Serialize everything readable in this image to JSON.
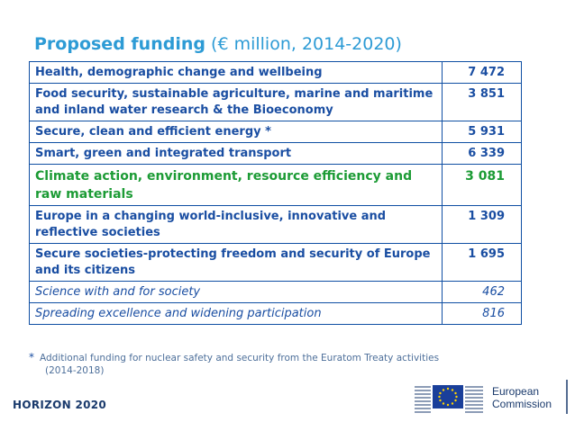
{
  "title": {
    "main": "Proposed funding",
    "sub": "(€ million, 2014-2020)"
  },
  "rows": [
    {
      "label": "Health, demographic change and wellbeing",
      "value": "7 472"
    },
    {
      "label": "Food security, sustainable agriculture, marine and maritime and inland water research & the Bioeconomy",
      "value": "3 851"
    },
    {
      "label": "Secure, clean and efficient energy *",
      "value": "5 931"
    },
    {
      "label": "Smart, green and integrated transport",
      "value": "6 339"
    },
    {
      "label": "Climate action, environment, resource efficiency and raw materials",
      "value": "3 081"
    },
    {
      "label": "Europe in a changing world-inclusive, innovative and reflective societies",
      "value": "1 309"
    },
    {
      "label": "Secure societies-protecting freedom and security of Europe and its citizens",
      "value": "1 695"
    },
    {
      "label": "Science with and for society",
      "value": "462"
    },
    {
      "label": "Spreading excellence and widening participation",
      "value": "816"
    }
  ],
  "footnote": {
    "star": "*",
    "line1": "Additional funding for nuclear safety and security from the Euratom Treaty activities",
    "line2": "(2014-2018)"
  },
  "brand": "HORIZON 2020",
  "commission": {
    "line1": "European",
    "line2": "Commission"
  },
  "colors": {
    "accent": "#2d9bd5",
    "table_text": "#1a4ea2",
    "highlight": "#1c9b35",
    "border": "#0f4fa3"
  }
}
